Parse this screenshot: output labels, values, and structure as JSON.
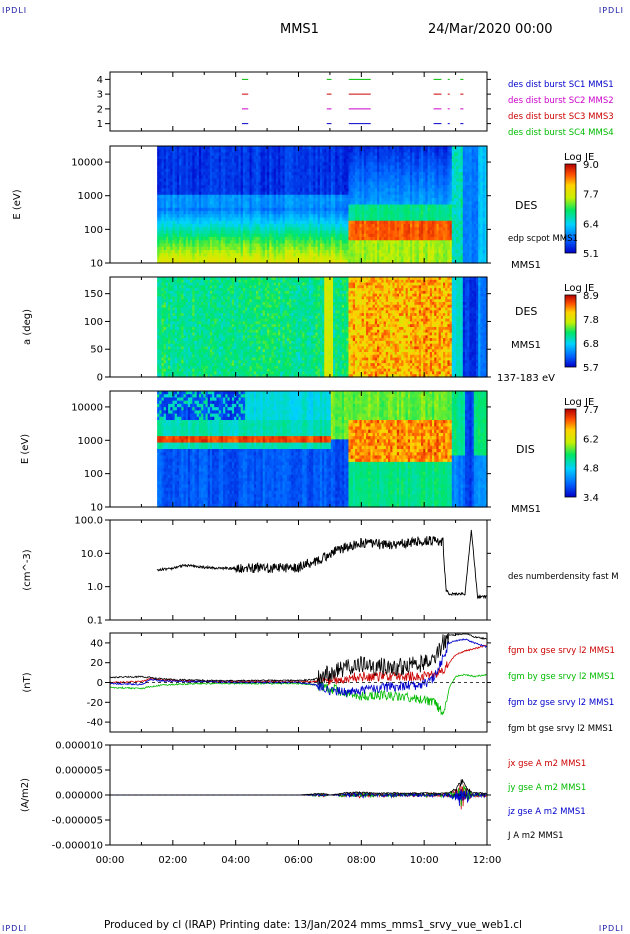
{
  "corners": {
    "tl": "IPDLI",
    "tr": "IPDLI",
    "bl": "IPDLI",
    "br": "IPDLI"
  },
  "header": {
    "title": "MMS1",
    "date": "24/Mar/2020 00:00"
  },
  "footer": {
    "text": "Produced by cl (IRAP)   Printing date: 13/Jan/2024   mms_mms1_srvy_vue_web1.cl"
  },
  "time_axis": {
    "ticks": [
      "00:00",
      "02:00",
      "04:00",
      "06:00",
      "08:00",
      "10:00",
      "12:00"
    ]
  },
  "colors": {
    "mms1": "#0000cc",
    "mms2": "#cc00cc",
    "mms3": "#cc0000",
    "mms4": "#00bb00",
    "black": "#000000"
  },
  "chart_data": [
    {
      "type": "scatter",
      "id": "burst",
      "yticks": [
        "1",
        "2",
        "3",
        "4"
      ],
      "ylim": [
        0.5,
        4.5
      ],
      "legend": [
        "des dist burst SC1 MMS1",
        "des dist burst SC2 MMS2",
        "des dist burst SC3 MMS3",
        "des dist burst SC4 MMS4"
      ],
      "intervals_hours": [
        [
          4.2,
          4.4
        ],
        [
          6.9,
          7.05
        ],
        [
          7.6,
          8.3
        ],
        [
          10.3,
          10.55
        ],
        [
          10.75,
          10.8
        ],
        [
          11.15,
          11.25
        ]
      ]
    },
    {
      "type": "heatmap",
      "id": "des-energy",
      "ylabel": "E (eV)",
      "yticks": [
        "10",
        "100",
        "1000",
        "10000"
      ],
      "side_label": "DES",
      "overlay_label": "edp scpot MMS1",
      "sc_label": "MMS1",
      "colorbar": {
        "title": "Log JE",
        "ticks": [
          "9.0",
          "7.7",
          "6.4",
          "5.1"
        ]
      }
    },
    {
      "type": "heatmap",
      "id": "des-pitch",
      "ylabel": "a (deg)",
      "yticks": [
        "0",
        "50",
        "100",
        "150"
      ],
      "side_label": "DES",
      "sc_label": "MMS1",
      "energy_label": "137-183 eV",
      "colorbar": {
        "title": "Log JE",
        "ticks": [
          "8.9",
          "7.8",
          "6.8",
          "5.7"
        ]
      }
    },
    {
      "type": "heatmap",
      "id": "dis-energy",
      "ylabel": "E (eV)",
      "yticks": [
        "10",
        "100",
        "1000",
        "10000"
      ],
      "side_label": "DIS",
      "sc_label": "MMS1",
      "colorbar": {
        "title": "Log JE",
        "ticks": [
          "7.7",
          "6.2",
          "4.8",
          "3.4"
        ]
      }
    },
    {
      "type": "line",
      "id": "density",
      "ylabel": "(cm^-3)",
      "yticks": [
        "0.1",
        "1.0",
        "10.0",
        "100.0"
      ],
      "ylim": [
        0.1,
        100
      ],
      "log": true,
      "series": [
        {
          "name": "des numberdensity fast M",
          "color": "#000000"
        }
      ],
      "x": [
        1.5,
        2.0,
        2.2,
        2.5,
        3.0,
        3.5,
        4.0,
        4.5,
        5.0,
        5.5,
        6.0,
        6.3,
        6.6,
        6.8,
        6.9,
        7.0,
        7.2,
        7.5,
        7.8,
        8.0,
        8.5,
        9.0,
        9.5,
        10.0,
        10.3,
        10.5,
        10.6,
        10.7,
        10.8,
        11.0,
        11.3,
        11.5,
        11.7,
        12.0
      ],
      "y": [
        3.2,
        3.5,
        4.2,
        4.3,
        3.8,
        3.6,
        3.5,
        3.6,
        3.5,
        3.7,
        3.8,
        5.0,
        6.0,
        8.0,
        7.0,
        10.0,
        12.0,
        15.0,
        18.0,
        20.0,
        19.0,
        18.0,
        20.0,
        25.0,
        23.0,
        22.0,
        21.0,
        0.8,
        0.6,
        0.6,
        0.6,
        50.0,
        0.5,
        0.5
      ]
    },
    {
      "type": "line",
      "id": "fgm",
      "ylabel": "(nT)",
      "yticks": [
        "-40",
        "-20",
        "0",
        "20",
        "40"
      ],
      "ylim": [
        -50,
        50
      ],
      "x": [
        0,
        1,
        1.3,
        1.5,
        2,
        3,
        4,
        5,
        6,
        6.5,
        7,
        7.5,
        8,
        8.5,
        9,
        9.5,
        10,
        10.3,
        10.6,
        10.8,
        11.0,
        11.3,
        11.6,
        12
      ],
      "series": [
        {
          "name": "fgm bx gse srvy l2 MMS1",
          "color": "#cc0000",
          "values": [
            0,
            1,
            4,
            3,
            2,
            1,
            1,
            1,
            1,
            1,
            2,
            4,
            6,
            6,
            6,
            6,
            7,
            8,
            12,
            20,
            28,
            32,
            34,
            38
          ]
        },
        {
          "name": "fgm by gse srvy l2 MMS1",
          "color": "#00bb00",
          "values": [
            -5,
            -6,
            -4,
            -3,
            -2,
            -1,
            -1,
            -1,
            -1,
            -2,
            -6,
            -10,
            -14,
            -12,
            -14,
            -15,
            -18,
            -20,
            -30,
            -5,
            6,
            8,
            6,
            8
          ]
        },
        {
          "name": "fgm bz gse srvy l2 MMS1",
          "color": "#0000cc",
          "values": [
            -1,
            -2,
            3,
            2,
            1,
            1,
            0,
            0,
            0,
            -2,
            -8,
            -10,
            -8,
            -6,
            -4,
            -3,
            -2,
            5,
            25,
            40,
            42,
            44,
            40,
            36
          ]
        },
        {
          "name": "fgm bt gse srvy l2 MMS1",
          "color": "#000000",
          "values": [
            5,
            6,
            5,
            4,
            3,
            2,
            2,
            2,
            2,
            3,
            10,
            14,
            18,
            16,
            16,
            17,
            20,
            25,
            40,
            48,
            48,
            50,
            46,
            44
          ]
        }
      ]
    },
    {
      "type": "line",
      "id": "current",
      "ylabel": "(A/m2)",
      "yticks": [
        "-0.000010",
        "-0.000005",
        "0.000000",
        "0.000005",
        "0.000010"
      ],
      "ylim": [
        -1e-05,
        1e-05
      ],
      "x": [
        0,
        1,
        2,
        3,
        4,
        5,
        6,
        6.8,
        7,
        7.5,
        8,
        8.5,
        9,
        9.5,
        10,
        10.5,
        10.8,
        11.0,
        11.2,
        11.5,
        12
      ],
      "series": [
        {
          "name": "jx gse A m2 MMS1",
          "color": "#cc0000"
        },
        {
          "name": "jy gse A m2 MMS1",
          "color": "#00bb00"
        },
        {
          "name": "jz gse A m2 MMS1",
          "color": "#0000cc"
        },
        {
          "name": "J A m2 MMS1",
          "color": "#000000",
          "values": [
            0,
            0,
            0,
            0,
            0,
            0,
            0,
            3e-07,
            0,
            4e-07,
            5e-07,
            3e-07,
            4e-07,
            3e-07,
            4e-07,
            3e-07,
            5e-07,
            1e-06,
            2.5e-06,
            5e-07,
            3e-07
          ]
        }
      ]
    }
  ]
}
